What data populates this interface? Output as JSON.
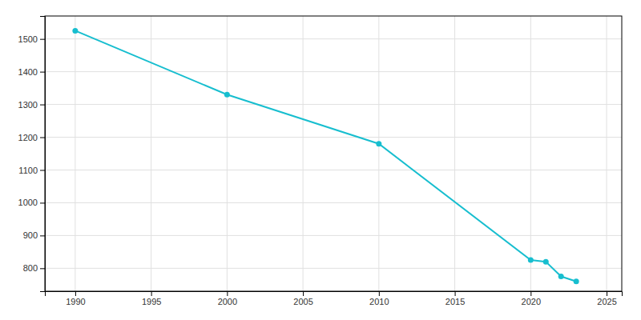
{
  "chart_data": {
    "type": "line",
    "x": [
      1990,
      2000,
      2010,
      2020,
      2021,
      2022,
      2023
    ],
    "values": [
      1525,
      1330,
      1180,
      825,
      820,
      775,
      760
    ],
    "color": "#17BECF",
    "marker": "circle",
    "xlim": [
      1988,
      2026
    ],
    "ylim": [
      730,
      1570
    ],
    "xticks": [
      1990,
      1995,
      2000,
      2005,
      2010,
      2015,
      2020,
      2025
    ],
    "yticks": [
      800,
      900,
      1000,
      1100,
      1200,
      1300,
      1400,
      1500
    ],
    "grid": true
  }
}
